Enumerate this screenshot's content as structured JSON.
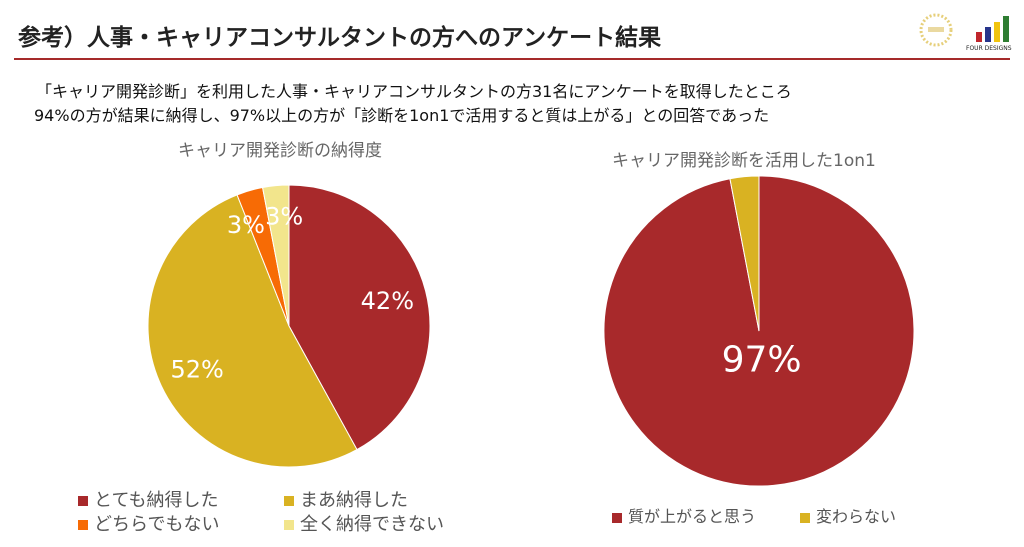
{
  "header": {
    "title": "参考）人事・キャリアコンサルタントの方へのアンケート結果",
    "logo_text": "FOUR DESIGNS"
  },
  "summary": {
    "line1": "「キャリア開発診断」を利用した人事・キャリアコンサルタントの方31名にアンケートを取得したところ",
    "line2": "94%の方が結果に納得し、97%以上の方が「診断を1on1で活用すると質は上がる」との回答であった"
  },
  "chart_data": [
    {
      "type": "pie",
      "title": "キャリア開発診断の納得度",
      "categories": [
        "とても納得した",
        "まあ納得した",
        "どちらでもない",
        "全く納得できない"
      ],
      "values": [
        42,
        52,
        3,
        3
      ],
      "labels": [
        "42%",
        "52%",
        "3%",
        "3%"
      ],
      "colors": [
        "#A8292B",
        "#D9B222",
        "#F76B05",
        "#F2E58C"
      ],
      "legend": "bottom"
    },
    {
      "type": "pie",
      "title": "キャリア開発診断を活用した1on1",
      "categories": [
        "質が上がると思う",
        "変わらない"
      ],
      "values": [
        97,
        3
      ],
      "labels": [
        "97%",
        ""
      ],
      "colors": [
        "#A8292B",
        "#D9B222"
      ],
      "legend": "bottom"
    }
  ]
}
